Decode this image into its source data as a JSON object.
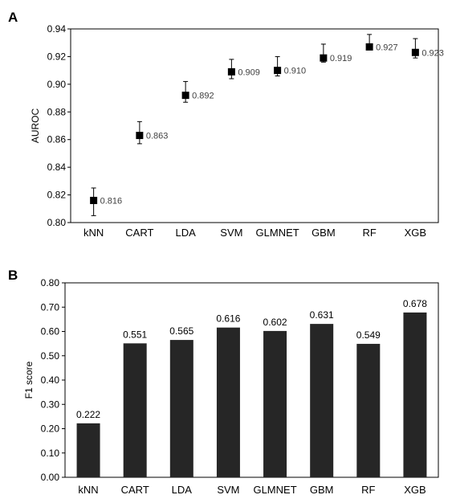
{
  "panels": [
    {
      "label": "A"
    },
    {
      "label": "B"
    }
  ],
  "chart_data": [
    {
      "type": "scatter",
      "panel": "A",
      "categories": [
        "kNN",
        "CART",
        "LDA",
        "SVM",
        "GLMNET",
        "GBM",
        "RF",
        "XGB"
      ],
      "values": [
        0.816,
        0.863,
        0.892,
        0.909,
        0.91,
        0.919,
        0.927,
        0.923
      ],
      "data_labels": [
        "0.816",
        "0.863",
        "0.892",
        "0.909",
        "0.910",
        "0.919",
        "0.927",
        "0.923"
      ],
      "error_low": [
        0.805,
        0.857,
        0.887,
        0.904,
        0.906,
        0.916,
        0.925,
        0.919
      ],
      "error_high": [
        0.825,
        0.873,
        0.902,
        0.918,
        0.92,
        0.929,
        0.936,
        0.933
      ],
      "xlabel": "",
      "ylabel": "AUROC",
      "ylim": [
        0.8,
        0.94
      ],
      "yticks": [
        "0.80",
        "0.82",
        "0.84",
        "0.86",
        "0.88",
        "0.90",
        "0.92",
        "0.94"
      ],
      "grid": false,
      "marker": "square",
      "marker_color": "#000000"
    },
    {
      "type": "bar",
      "panel": "B",
      "categories": [
        "kNN",
        "CART",
        "LDA",
        "SVM",
        "GLMNET",
        "GBM",
        "RF",
        "XGB"
      ],
      "values": [
        0.222,
        0.551,
        0.565,
        0.616,
        0.602,
        0.631,
        0.549,
        0.678
      ],
      "data_labels": [
        "0.222",
        "0.551",
        "0.565",
        "0.616",
        "0.602",
        "0.631",
        "0.549",
        "0.678"
      ],
      "xlabel": "",
      "ylabel": "F1 score",
      "ylim": [
        0.0,
        0.8
      ],
      "yticks": [
        "0.00",
        "0.10",
        "0.20",
        "0.30",
        "0.40",
        "0.50",
        "0.60",
        "0.70",
        "0.80"
      ],
      "grid": false,
      "bar_color": "#262626"
    }
  ]
}
